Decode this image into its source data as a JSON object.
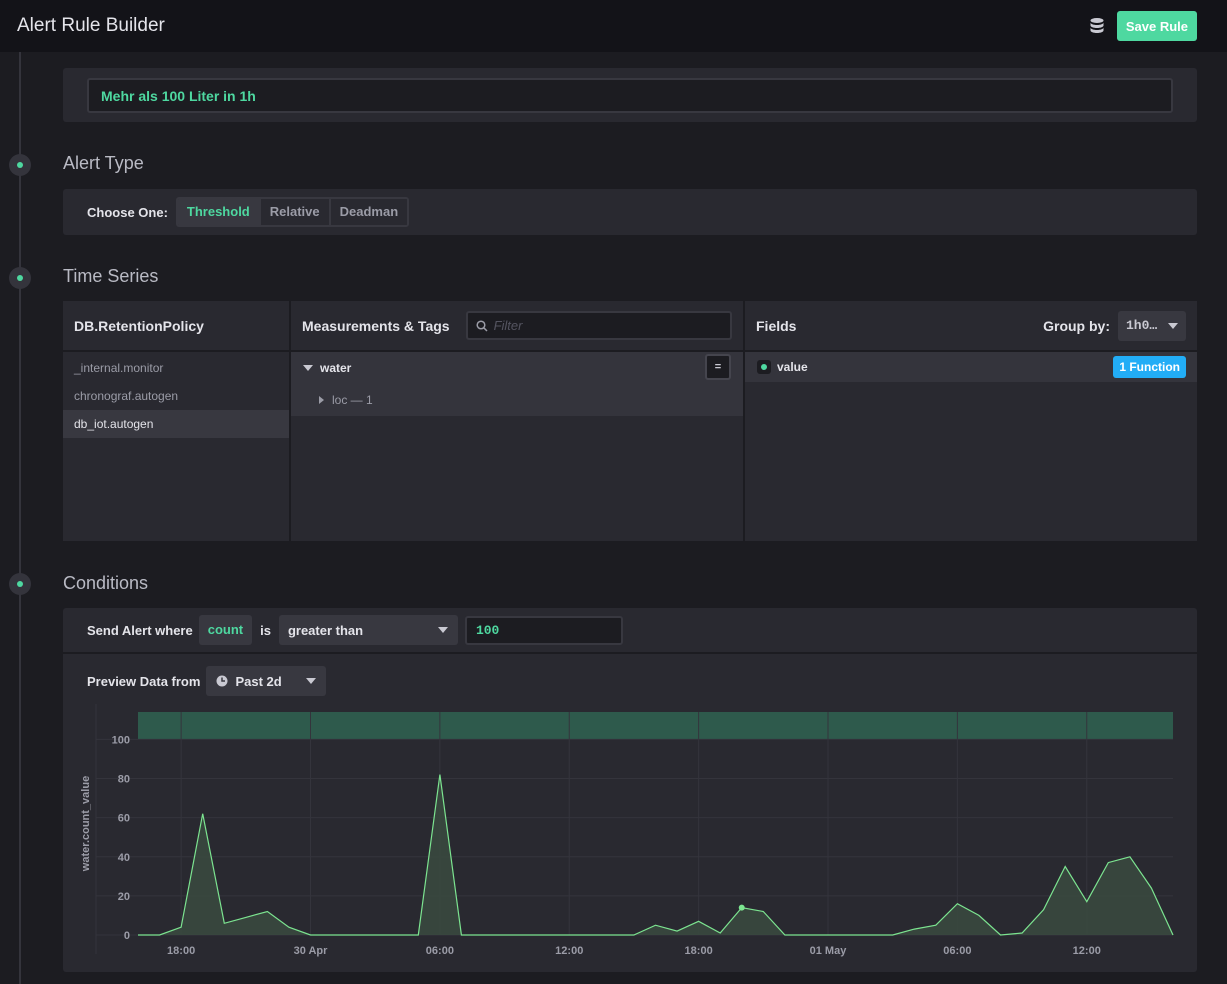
{
  "header": {
    "title": "Alert Rule Builder",
    "save_label": "Save Rule",
    "db_icon": "database-icon"
  },
  "rule_name": {
    "value": "Mehr als 100 Liter in 1h"
  },
  "alert_type": {
    "title": "Alert Type",
    "choose_label": "Choose One:",
    "options": [
      "Threshold",
      "Relative",
      "Deadman"
    ],
    "selected": "Threshold"
  },
  "time_series": {
    "title": "Time Series",
    "db_header": "DB.RetentionPolicy",
    "databases": [
      "_internal.monitor",
      "chronograf.autogen",
      "db_iot.autogen"
    ],
    "selected_db": "db_iot.autogen",
    "measurements_header": "Measurements & Tags",
    "filter_placeholder": "Filter",
    "measurement": "water",
    "tag": "loc — 1",
    "eq_label": "=",
    "fields_header": "Fields",
    "group_by_label": "Group by:",
    "group_by_value": "1h0…",
    "field": "value",
    "function_label": "1 Function"
  },
  "conditions": {
    "title": "Conditions",
    "send_alert_label": "Send Alert where",
    "field_pill": "count",
    "is_label": "is",
    "operator": "greater than",
    "threshold_value": "100",
    "preview_label": "Preview Data from",
    "preview_range": "Past 2d"
  },
  "chart_data": {
    "type": "area",
    "ylabel": "water.count_value",
    "ylim": [
      0,
      114
    ],
    "yticks": [
      0,
      20,
      40,
      60,
      80,
      100
    ],
    "threshold": 100,
    "x_tick_labels": [
      "18:00",
      "30 Apr",
      "06:00",
      "12:00",
      "18:00",
      "01 May",
      "06:00",
      "12:00"
    ],
    "x_tick_hours": [
      18,
      24,
      30,
      36,
      42,
      48,
      54,
      60
    ],
    "x_range_hours": [
      16,
      64
    ],
    "points": [
      [
        16,
        0
      ],
      [
        17,
        0
      ],
      [
        18,
        4
      ],
      [
        19,
        62
      ],
      [
        20,
        6
      ],
      [
        21,
        9
      ],
      [
        22,
        12
      ],
      [
        23,
        4
      ],
      [
        24,
        0
      ],
      [
        25,
        0
      ],
      [
        26,
        0
      ],
      [
        27,
        0
      ],
      [
        28,
        0
      ],
      [
        29,
        0
      ],
      [
        30,
        82
      ],
      [
        31,
        0
      ],
      [
        32,
        0
      ],
      [
        33,
        0
      ],
      [
        34,
        0
      ],
      [
        35,
        0
      ],
      [
        36,
        0
      ],
      [
        37,
        0
      ],
      [
        38,
        0
      ],
      [
        39,
        0
      ],
      [
        40,
        5
      ],
      [
        41,
        2
      ],
      [
        42,
        7
      ],
      [
        43,
        1
      ],
      [
        44,
        14
      ],
      [
        45,
        12
      ],
      [
        46,
        0
      ],
      [
        47,
        0
      ],
      [
        48,
        0
      ],
      [
        49,
        0
      ],
      [
        50,
        0
      ],
      [
        51,
        0
      ],
      [
        52,
        3
      ],
      [
        53,
        5
      ],
      [
        54,
        16
      ],
      [
        55,
        10
      ],
      [
        56,
        0
      ],
      [
        57,
        1
      ],
      [
        58,
        13
      ],
      [
        59,
        35
      ],
      [
        60,
        17
      ],
      [
        61,
        37
      ],
      [
        62,
        40
      ],
      [
        63,
        24
      ],
      [
        64,
        0
      ]
    ],
    "highlight_point": [
      44,
      14
    ],
    "colors": {
      "line": "#7ce490",
      "fill": "#3a4a40",
      "threshold_band": "#2e5a4c",
      "grid": "#34343c"
    }
  }
}
